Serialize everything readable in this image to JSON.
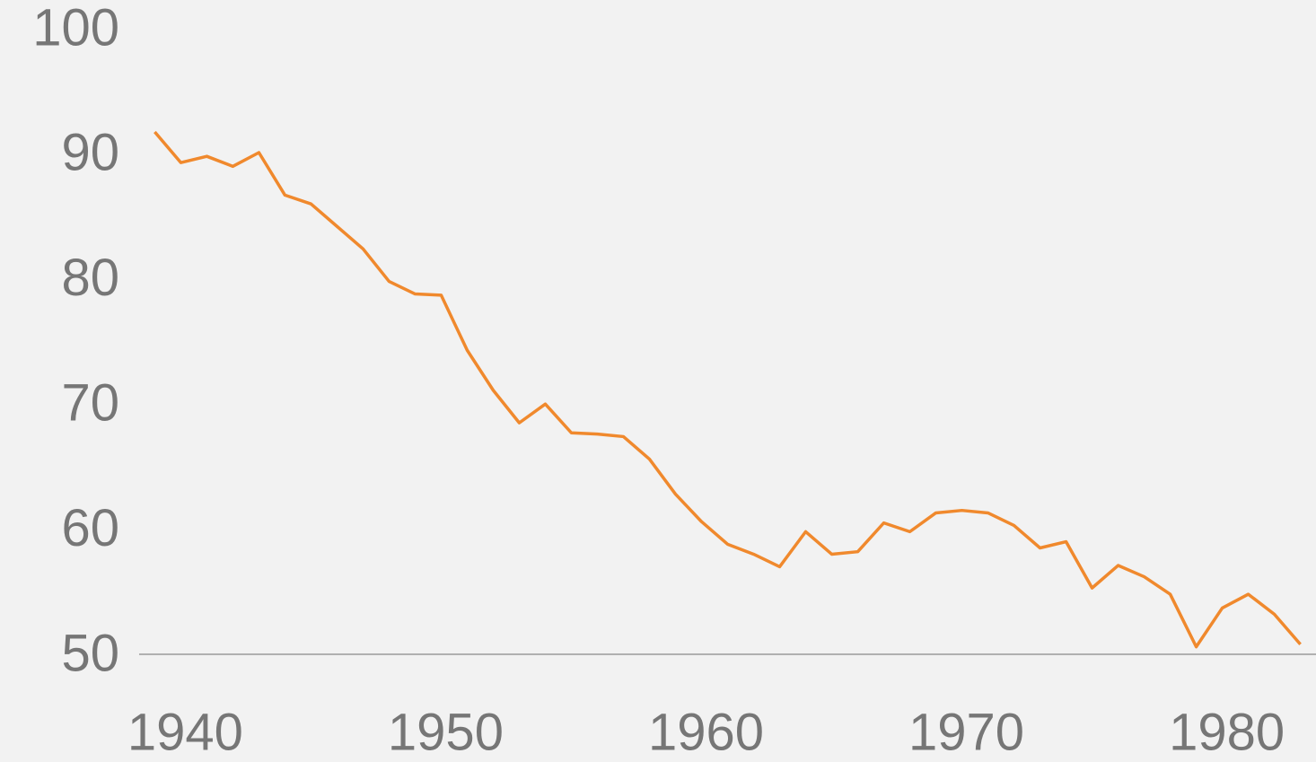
{
  "chart_data": {
    "type": "line",
    "x": [
      1939,
      1940,
      1941,
      1942,
      1943,
      1944,
      1945,
      1946,
      1947,
      1948,
      1949,
      1950,
      1951,
      1952,
      1953,
      1954,
      1955,
      1956,
      1957,
      1958,
      1959,
      1960,
      1961,
      1962,
      1963,
      1964,
      1965,
      1966,
      1967,
      1968,
      1969,
      1970,
      1971,
      1972,
      1973,
      1974,
      1975,
      1976,
      1977,
      1978,
      1979,
      1980,
      1981,
      1982,
      1983
    ],
    "series": [
      {
        "color": "#f0892d",
        "values": [
          91.75,
          89.3,
          89.8,
          89.0,
          90.1,
          86.7,
          86.0,
          84.2,
          82.4,
          79.8,
          78.8,
          78.7,
          74.3,
          71.1,
          68.5,
          70.0,
          67.7,
          67.6,
          67.4,
          65.6,
          62.8,
          60.6,
          58.8,
          58.0,
          57.0,
          59.8,
          58.0,
          58.2,
          60.5,
          59.8,
          61.3,
          61.5,
          61.3,
          60.3,
          58.5,
          59.0,
          55.3,
          57.1,
          56.2,
          54.8,
          50.6,
          53.7,
          54.8,
          53.2,
          50.8
        ]
      }
    ],
    "xlim": [
      1938.4,
      1983.6
    ],
    "xticks": [
      1940,
      1950,
      1960,
      1970,
      1980
    ],
    "ylim": [
      50,
      100
    ],
    "yticks": [
      50,
      60,
      70,
      80,
      90,
      100
    ]
  }
}
